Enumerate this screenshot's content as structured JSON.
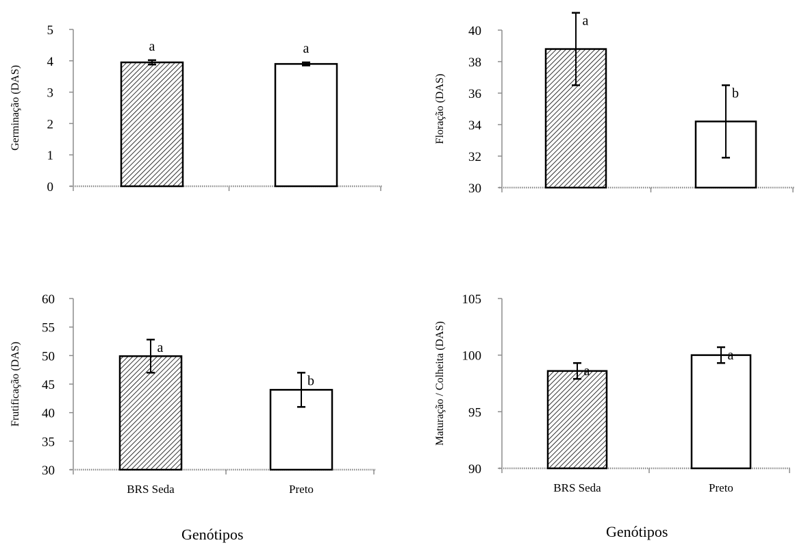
{
  "colors": {
    "axis": "#8c8c8c",
    "bar_stroke": "#000000",
    "hatch": "#000000",
    "fill_white": "#ffffff"
  },
  "chart_data": [
    {
      "type": "bar",
      "categories": [
        "BRS Seda",
        "Preto"
      ],
      "values": [
        3.95,
        3.9
      ],
      "errors": [
        0.07,
        0.05
      ],
      "letters": [
        "a",
        "a"
      ],
      "patterns": [
        "hatch",
        "plain"
      ],
      "ylabel": "Germinação (DAS)",
      "ylim": [
        0,
        5
      ],
      "yticks": [
        0,
        1,
        2,
        3,
        4,
        5
      ],
      "show_category_labels": false
    },
    {
      "type": "bar",
      "categories": [
        "BRS Seda",
        "Preto"
      ],
      "values": [
        38.8,
        34.2
      ],
      "errors": [
        2.3,
        2.3
      ],
      "letters": [
        "a",
        "b"
      ],
      "patterns": [
        "hatch",
        "plain"
      ],
      "ylabel": "Floração (DAS)",
      "ylim": [
        30,
        40
      ],
      "yticks": [
        30,
        32,
        34,
        36,
        38,
        40
      ],
      "show_category_labels": false
    },
    {
      "type": "bar",
      "categories": [
        "BRS Seda",
        "Preto"
      ],
      "values": [
        49.9,
        44.0
      ],
      "errors": [
        2.9,
        3.0
      ],
      "letters": [
        "a",
        "b"
      ],
      "patterns": [
        "hatch",
        "plain"
      ],
      "ylabel": "Frutificação (DAS)",
      "ylim": [
        30,
        60
      ],
      "yticks": [
        30,
        35,
        40,
        45,
        50,
        55,
        60
      ],
      "show_category_labels": true
    },
    {
      "type": "bar",
      "categories": [
        "BRS Seda",
        "Preto"
      ],
      "values": [
        98.6,
        100.0
      ],
      "errors": [
        0.7,
        0.7
      ],
      "letters": [
        "a",
        "a"
      ],
      "patterns": [
        "hatch",
        "plain"
      ],
      "ylabel": "Maturação / Colheita (DAS)",
      "ylim": [
        90,
        105
      ],
      "yticks": [
        90,
        95,
        100,
        105
      ],
      "show_category_labels": true
    }
  ],
  "xlabels": [
    "Genótipos",
    "Genótipos"
  ]
}
